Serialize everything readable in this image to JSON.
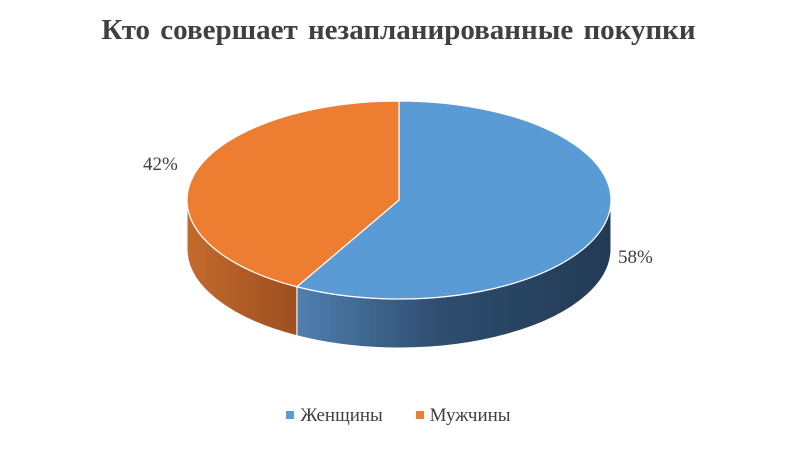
{
  "chart_data": {
    "type": "pie",
    "title": "Кто совершает  незапланированные  покупки",
    "categories": [
      "Женщины",
      "Мужчины"
    ],
    "values": [
      58,
      42
    ],
    "labels": [
      "58%",
      "42%"
    ],
    "colors": [
      "#5b9bd5",
      "#ed7d31"
    ],
    "legend": "bottom"
  }
}
